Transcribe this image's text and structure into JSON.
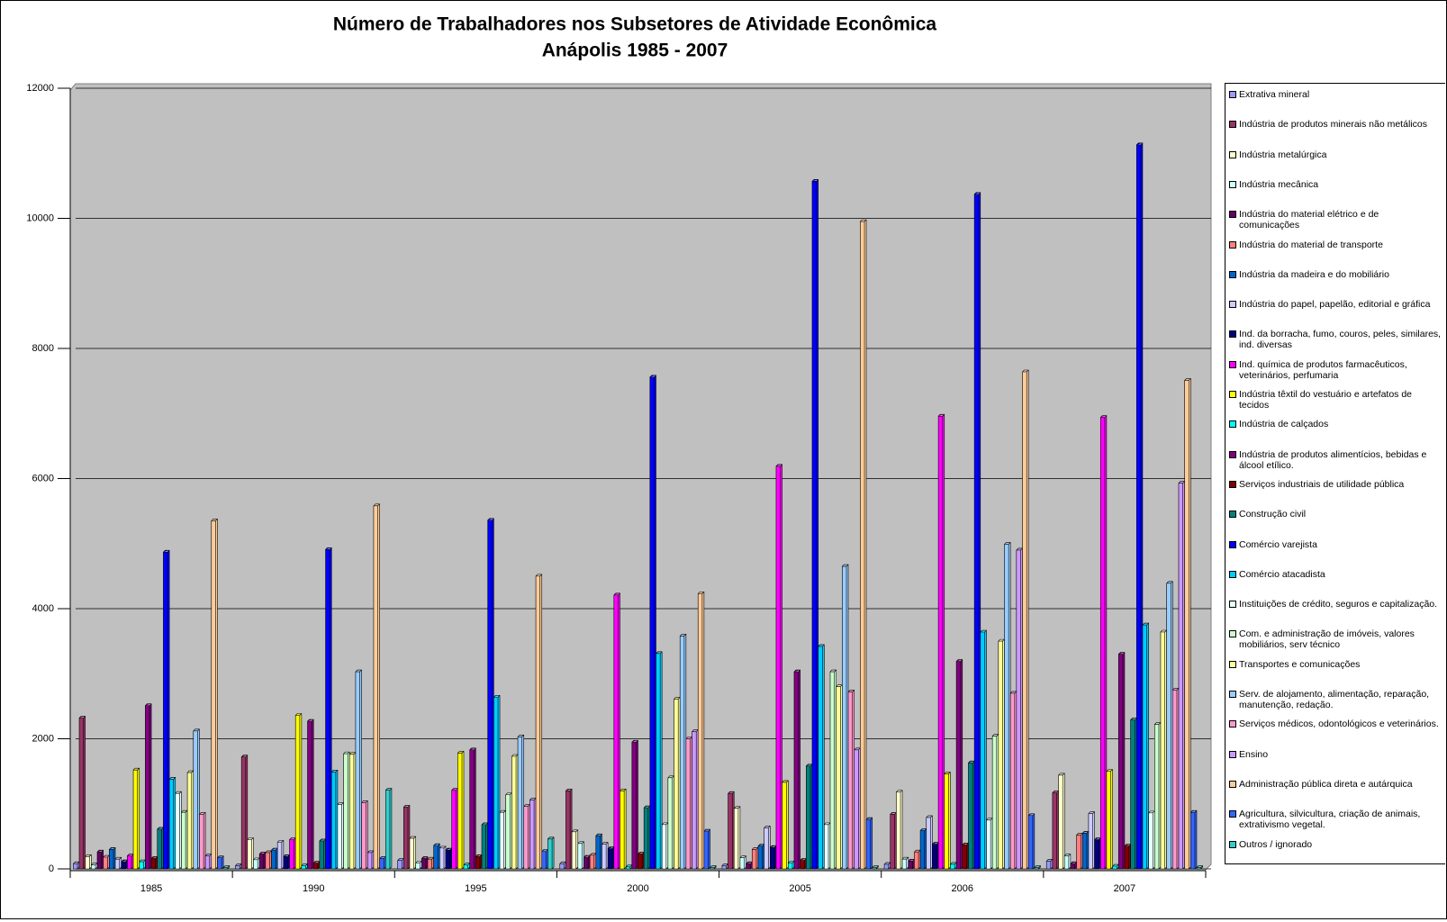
{
  "chart_data": {
    "type": "bar",
    "title": "Número de Trabalhadores nos Subsetores de Atividade Econômica",
    "subtitle": "Anápolis 1985 - 2007",
    "categories": [
      "1985",
      "1990",
      "1995",
      "2000",
      "2005",
      "2006",
      "2007"
    ],
    "ylim": [
      0,
      12000
    ],
    "yticks": [
      0,
      2000,
      4000,
      6000,
      8000,
      10000,
      12000
    ],
    "grid": true,
    "series": [
      {
        "name": "Extrativa mineral",
        "color": "#9999ff",
        "values": [
          80,
          50,
          130,
          80,
          50,
          70,
          120
        ]
      },
      {
        "name": "Indústria de produtos minerais não metálicos",
        "color": "#993366",
        "values": [
          2320,
          1720,
          950,
          1200,
          1160,
          840,
          1170
        ]
      },
      {
        "name": "Indústria metalúrgica",
        "color": "#ffffcc",
        "values": [
          190,
          450,
          470,
          570,
          930,
          1180,
          1440
        ]
      },
      {
        "name": "Indústria mecânica",
        "color": "#ccffff",
        "values": [
          60,
          140,
          90,
          390,
          170,
          150,
          200
        ]
      },
      {
        "name": "Indústria do material elétrico e de comunicações",
        "color": "#660066",
        "values": [
          260,
          230,
          160,
          180,
          80,
          120,
          80
        ]
      },
      {
        "name": "Indústria do material de transporte",
        "color": "#ff8080",
        "values": [
          180,
          250,
          150,
          210,
          300,
          260,
          520
        ]
      },
      {
        "name": "Indústria da madeira e do mobiliário",
        "color": "#0066cc",
        "values": [
          300,
          290,
          360,
          510,
          350,
          590,
          550
        ]
      },
      {
        "name": "Indústria do papel, papelão, editorial e gráfica",
        "color": "#ccccff",
        "values": [
          150,
          410,
          320,
          380,
          630,
          790,
          850
        ]
      },
      {
        "name": "Ind. da borracha, fumo, couros, peles, similares, ind. diversas",
        "color": "#000080",
        "values": [
          110,
          190,
          290,
          310,
          330,
          380,
          450
        ]
      },
      {
        "name": "Ind. química de produtos farmacêuticos, veterinários, perfumaria",
        "color": "#ff00ff",
        "values": [
          200,
          450,
          1210,
          4210,
          6190,
          6960,
          6940
        ]
      },
      {
        "name": "Indústria têxtil do vestuário e artefatos de tecidos",
        "color": "#ffff00",
        "values": [
          1520,
          2360,
          1780,
          1200,
          1330,
          1460,
          1500
        ]
      },
      {
        "name": "Indústria de calçados",
        "color": "#00ffff",
        "values": [
          110,
          50,
          60,
          30,
          90,
          70,
          40
        ]
      },
      {
        "name": "Indústria de produtos alimentícios, bebidas e álcool etílico.",
        "color": "#800080",
        "values": [
          2510,
          2270,
          1830,
          1950,
          3030,
          3190,
          3300
        ]
      },
      {
        "name": "Serviços industriais de utilidade pública",
        "color": "#800000",
        "values": [
          160,
          90,
          190,
          230,
          130,
          370,
          350
        ]
      },
      {
        "name": "Construção civil",
        "color": "#008080",
        "values": [
          610,
          430,
          680,
          940,
          1580,
          1630,
          2290
        ]
      },
      {
        "name": "Comércio varejista",
        "color": "#0000ff",
        "values": [
          4870,
          4910,
          5360,
          7560,
          10570,
          10370,
          11130
        ]
      },
      {
        "name": "Comércio atacadista",
        "color": "#00ccff",
        "values": [
          1380,
          1490,
          2640,
          3310,
          3420,
          3640,
          3750
        ]
      },
      {
        "name": "Instituições de crédito, seguros e capitalização.",
        "color": "#e6ffff",
        "values": [
          1160,
          990,
          870,
          680,
          680,
          750,
          860
        ]
      },
      {
        "name": "Com. e administração de imóveis, valores mobiliários, serv técnico",
        "color": "#ccffcc",
        "values": [
          870,
          1770,
          1140,
          1400,
          3030,
          2040,
          2220
        ]
      },
      {
        "name": "Transportes e comunicações",
        "color": "#ffff99",
        "values": [
          1480,
          1760,
          1730,
          2610,
          2800,
          3500,
          3640
        ]
      },
      {
        "name": "Serv. de alojamento, alimentação, reparação, manutenção, redação.",
        "color": "#99ccff",
        "values": [
          2120,
          3030,
          2030,
          3580,
          4650,
          4990,
          4390
        ]
      },
      {
        "name": "Serviços médicos, odontológicos e veterinários.",
        "color": "#ff99cc",
        "values": [
          840,
          1020,
          960,
          2000,
          2720,
          2700,
          2750
        ]
      },
      {
        "name": "Ensino",
        "color": "#cc99ff",
        "values": [
          200,
          250,
          1060,
          2110,
          1830,
          4900,
          5930
        ]
      },
      {
        "name": "Administração pública direta e autárquica",
        "color": "#ffcc99",
        "values": [
          5350,
          5580,
          4500,
          4230,
          9950,
          7640,
          7510
        ]
      },
      {
        "name": "Agricultura, silvicultura, criação de animais, extrativismo vegetal.",
        "color": "#3366ff",
        "values": [
          170,
          160,
          270,
          580,
          760,
          820,
          870
        ]
      },
      {
        "name": "Outros / ignorado",
        "color": "#33cccc",
        "values": [
          20,
          1210,
          460,
          20,
          20,
          20,
          20
        ]
      }
    ]
  }
}
